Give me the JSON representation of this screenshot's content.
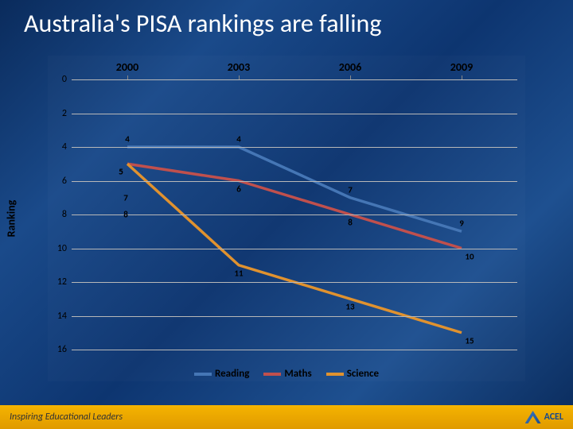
{
  "slide": {
    "title": "Australia's PISA rankings are falling",
    "title_fontsize": 32,
    "title_color": "#ffffff",
    "background_gradient": [
      "#0a2b5c",
      "#1a4a8a",
      "#0d3570",
      "#1e5090",
      "#0a2b5c"
    ]
  },
  "chart": {
    "type": "line",
    "y_axis_label": "Ranking",
    "y_axis_label_fontsize": 14,
    "categories": [
      "2000",
      "2003",
      "2006",
      "2009"
    ],
    "category_fontsize": 14,
    "ylim": [
      0,
      16
    ],
    "ytick_step": 2,
    "yticks": [
      0,
      2,
      4,
      6,
      8,
      10,
      12,
      14,
      16
    ],
    "ytick_fontsize": 12,
    "grid_color": "#b8b8b8",
    "line_width": 3.5,
    "data_label_fontsize": 11,
    "series": [
      {
        "name": "Reading",
        "color": "#4576b5",
        "values": [
          4,
          4,
          7,
          9
        ],
        "labels": [
          "4",
          "4",
          "7",
          "9"
        ]
      },
      {
        "name": "Maths",
        "color": "#c0504d",
        "values": [
          5,
          6,
          8,
          10
        ],
        "labels": [
          "5",
          "6",
          "8",
          "10"
        ],
        "extra_point_label": {
          "x_index": 0,
          "value": 7,
          "text": "7"
        }
      },
      {
        "name": "Science",
        "color": "#e0922f",
        "values": [
          5,
          11,
          13,
          15
        ],
        "labels": [
          "5",
          "11",
          "13",
          "15"
        ],
        "extra_point_label": {
          "x_index": 0,
          "value": 8,
          "text": "8"
        }
      }
    ],
    "legend_fontsize": 13
  },
  "footer": {
    "text": "Inspiring Educational Leaders",
    "logo_text": "ACEL",
    "bar_color_top": "#f5b400",
    "bar_color_bottom": "#e09a00"
  }
}
